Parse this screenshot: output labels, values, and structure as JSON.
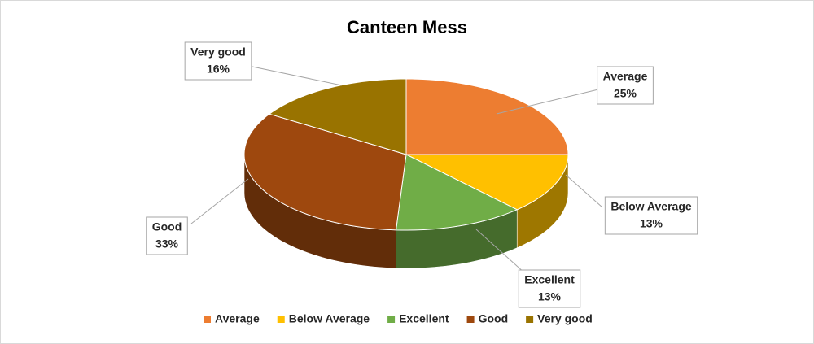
{
  "chart_data": {
    "type": "pie",
    "title": "Canteen Mess",
    "categories": [
      "Average",
      "Below Average",
      "Excellent",
      "Good",
      "Very good"
    ],
    "values": [
      25,
      13,
      13,
      33,
      16
    ],
    "value_labels": [
      "25%",
      "13%",
      "13%",
      "33%",
      "16%"
    ],
    "colors": [
      "#ED7D31",
      "#FFC000",
      "#70AD47",
      "#9E480E",
      "#997300"
    ],
    "legend": "bottom"
  }
}
